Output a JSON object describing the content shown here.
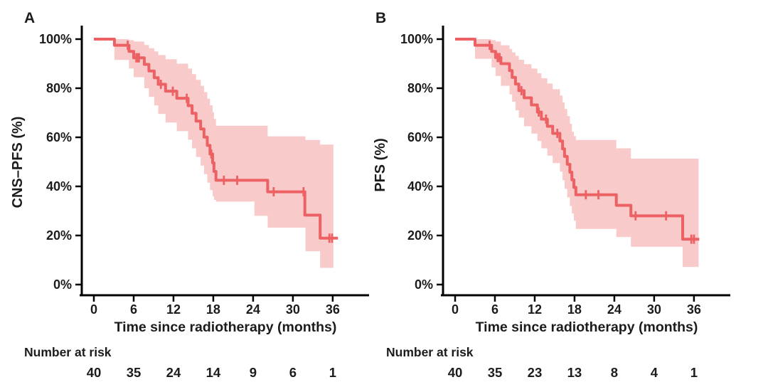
{
  "figure": {
    "background": "#ffffff",
    "curve_color": "#ec6163",
    "band_color": "#f9caca",
    "axis_color": "#000000",
    "text_color": "#1c1c1c"
  },
  "panels": [
    {
      "label": "A"
    },
    {
      "label": "B"
    }
  ],
  "chart_data": [
    {
      "type": "line",
      "subtype": "kaplan-meier-survival-curve",
      "panel": "A",
      "xlabel": "Time since radiotherapy (months)",
      "ylabel": "CNS–PFS (%)",
      "x_ticks": [
        0,
        6,
        12,
        18,
        24,
        30,
        36
      ],
      "y_ticks": [
        {
          "value": 0,
          "label": "0%"
        },
        {
          "value": 20,
          "label": "20%"
        },
        {
          "value": 40,
          "label": "40%"
        },
        {
          "value": 60,
          "label": "60%"
        },
        {
          "value": 80,
          "label": "80%"
        },
        {
          "value": 100,
          "label": "100%"
        }
      ],
      "xlim": [
        0,
        39
      ],
      "ylim": [
        0,
        100
      ],
      "grid": false,
      "legend": "none",
      "steps_pct": [
        [
          0,
          100
        ],
        [
          3.1,
          97.5
        ],
        [
          5.3,
          95.0
        ],
        [
          6.0,
          92.4
        ],
        [
          7.6,
          89.7
        ],
        [
          8.3,
          87.0
        ],
        [
          9.1,
          84.3
        ],
        [
          9.7,
          81.6
        ],
        [
          10.8,
          78.8
        ],
        [
          12.5,
          75.9
        ],
        [
          14.2,
          72.9
        ],
        [
          14.8,
          69.8
        ],
        [
          15.4,
          66.6
        ],
        [
          16.1,
          63.4
        ],
        [
          16.6,
          60.1
        ],
        [
          17.1,
          56.7
        ],
        [
          17.5,
          53.2
        ],
        [
          17.9,
          49.6
        ],
        [
          18.1,
          46.1
        ],
        [
          18.4,
          42.5
        ],
        [
          26.2,
          37.8
        ],
        [
          31.8,
          28.3
        ],
        [
          34.1,
          18.9
        ]
      ],
      "curve_end_month": 36.8,
      "censor_marks": [
        [
          5.1,
          97.5
        ],
        [
          6.4,
          92.4
        ],
        [
          6.6,
          92.4
        ],
        [
          6.8,
          92.4
        ],
        [
          10.1,
          81.6
        ],
        [
          11.9,
          78.8
        ],
        [
          14.0,
          75.9
        ],
        [
          17.7,
          53.2
        ],
        [
          19.6,
          42.5
        ],
        [
          21.6,
          42.5
        ],
        [
          27.1,
          37.8
        ],
        [
          31.6,
          37.8
        ],
        [
          35.5,
          18.9
        ],
        [
          35.9,
          18.9
        ]
      ],
      "ci_band_pct": [
        [
          3.1,
          91.5,
          100
        ],
        [
          5.3,
          88.0,
          99.6
        ],
        [
          6.0,
          84.5,
          99.0
        ],
        [
          7.6,
          80.0,
          97.6
        ],
        [
          8.3,
          76.5,
          96.3
        ],
        [
          9.1,
          73.0,
          95.0
        ],
        [
          9.7,
          69.5,
          93.5
        ],
        [
          10.8,
          66.0,
          91.8
        ],
        [
          12.5,
          62.5,
          90.0
        ],
        [
          14.2,
          59.0,
          88.0
        ],
        [
          14.8,
          55.5,
          85.7
        ],
        [
          15.4,
          52.0,
          83.4
        ],
        [
          16.1,
          48.5,
          81.0
        ],
        [
          16.6,
          45.0,
          78.4
        ],
        [
          17.1,
          41.5,
          75.7
        ],
        [
          17.5,
          38.5,
          73.0
        ],
        [
          17.9,
          36.0,
          70.2
        ],
        [
          18.1,
          34.5,
          67.5
        ],
        [
          18.4,
          33.8,
          64.7
        ],
        [
          24.2,
          28.0,
          64.7
        ],
        [
          26.2,
          23.2,
          60.4
        ],
        [
          31.9,
          13.6,
          58.9
        ],
        [
          34.1,
          6.8,
          57.0
        ]
      ],
      "band_end_month": 36.1,
      "number_at_risk": {
        "label": "Number at risk",
        "times": [
          0,
          6,
          12,
          18,
          24,
          30,
          36
        ],
        "counts": [
          40,
          35,
          24,
          14,
          9,
          6,
          1
        ]
      }
    },
    {
      "type": "line",
      "subtype": "kaplan-meier-survival-curve",
      "panel": "B",
      "xlabel": "Time since radiotherapy (months)",
      "ylabel": "PFS (%)",
      "x_ticks": [
        0,
        6,
        12,
        18,
        24,
        30,
        36
      ],
      "y_ticks": [
        {
          "value": 0,
          "label": "0%"
        },
        {
          "value": 20,
          "label": "20%"
        },
        {
          "value": 40,
          "label": "40%"
        },
        {
          "value": 60,
          "label": "60%"
        },
        {
          "value": 80,
          "label": "80%"
        },
        {
          "value": 100,
          "label": "100%"
        }
      ],
      "xlim": [
        0,
        39
      ],
      "ylim": [
        0,
        100
      ],
      "grid": false,
      "legend": "none",
      "steps_pct": [
        [
          0,
          100
        ],
        [
          3.0,
          97.5
        ],
        [
          5.5,
          95.0
        ],
        [
          6.1,
          92.5
        ],
        [
          6.9,
          90.0
        ],
        [
          8.2,
          87.2
        ],
        [
          8.6,
          84.4
        ],
        [
          9.1,
          81.7
        ],
        [
          9.6,
          79.0
        ],
        [
          10.4,
          76.1
        ],
        [
          11.5,
          73.2
        ],
        [
          12.4,
          70.3
        ],
        [
          13.0,
          67.4
        ],
        [
          13.9,
          64.5
        ],
        [
          14.7,
          61.6
        ],
        [
          15.8,
          58.5
        ],
        [
          16.2,
          55.3
        ],
        [
          16.5,
          52.2
        ],
        [
          16.9,
          49.0
        ],
        [
          17.3,
          45.8
        ],
        [
          17.6,
          42.7
        ],
        [
          17.9,
          39.6
        ],
        [
          18.2,
          36.6
        ],
        [
          24.3,
          32.3
        ],
        [
          26.5,
          28.0
        ],
        [
          34.3,
          18.5
        ]
      ],
      "curve_end_month": 36.8,
      "censor_marks": [
        [
          5.2,
          97.5
        ],
        [
          6.4,
          92.5
        ],
        [
          6.7,
          92.5
        ],
        [
          10.0,
          79.0
        ],
        [
          12.6,
          70.3
        ],
        [
          13.7,
          67.4
        ],
        [
          15.4,
          61.6
        ],
        [
          19.7,
          36.6
        ],
        [
          21.6,
          36.6
        ],
        [
          27.2,
          28.0
        ],
        [
          31.8,
          28.0
        ],
        [
          35.6,
          18.5
        ],
        [
          36.0,
          18.5
        ]
      ],
      "ci_band_pct": [
        [
          3.0,
          92.0,
          100
        ],
        [
          5.5,
          88.5,
          99.6
        ],
        [
          6.1,
          85.0,
          99.0
        ],
        [
          6.9,
          81.0,
          97.5
        ],
        [
          8.2,
          77.5,
          96.0
        ],
        [
          8.6,
          74.5,
          94.6
        ],
        [
          9.1,
          71.0,
          93.2
        ],
        [
          9.6,
          68.0,
          91.6
        ],
        [
          10.4,
          64.5,
          89.8
        ],
        [
          11.5,
          61.5,
          88.0
        ],
        [
          12.4,
          58.5,
          86.1
        ],
        [
          13.0,
          55.5,
          84.1
        ],
        [
          13.9,
          52.5,
          81.9
        ],
        [
          14.7,
          49.5,
          79.6
        ],
        [
          15.8,
          46.0,
          77.0
        ],
        [
          16.2,
          42.5,
          74.3
        ],
        [
          16.5,
          39.0,
          71.5
        ],
        [
          16.9,
          35.5,
          68.6
        ],
        [
          17.3,
          32.0,
          65.5
        ],
        [
          17.6,
          29.0,
          62.3
        ],
        [
          17.9,
          26.0,
          60.5
        ],
        [
          18.2,
          22.7,
          58.9
        ],
        [
          24.3,
          19.4,
          55.5
        ],
        [
          26.5,
          15.4,
          51.3
        ],
        [
          34.3,
          7.2,
          51.3
        ]
      ],
      "band_end_month": 36.7,
      "number_at_risk": {
        "label": "Number at risk",
        "times": [
          0,
          6,
          12,
          18,
          24,
          30,
          36
        ],
        "counts": [
          40,
          35,
          23,
          13,
          8,
          4,
          1
        ]
      }
    }
  ]
}
